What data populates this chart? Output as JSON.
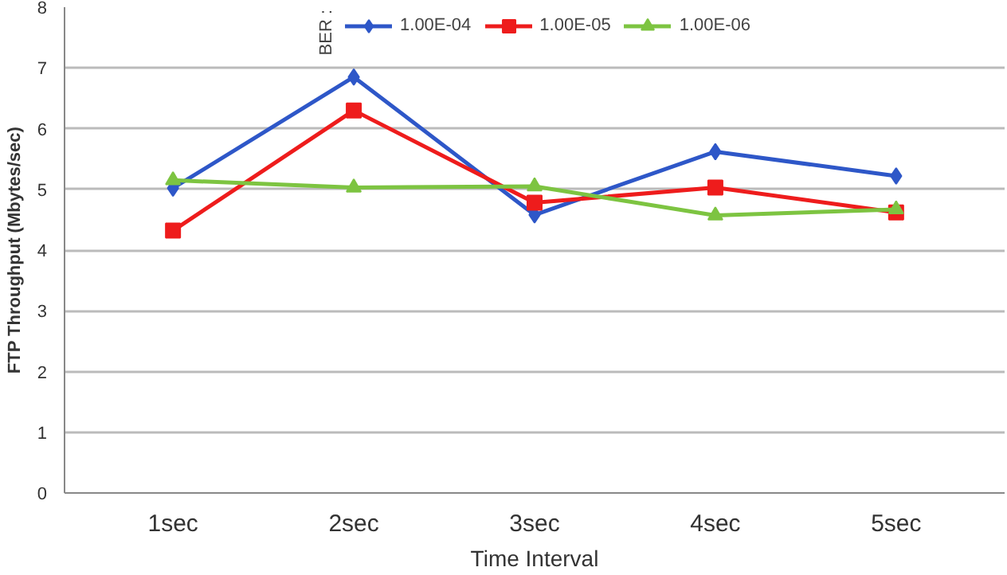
{
  "chart_data": {
    "type": "line",
    "xlabel": "Time Interval",
    "ylabel": "FTP Throughput (Mbytes/sec)",
    "legend_title": "BER :",
    "legend": "top",
    "grid": "y",
    "categories": [
      "1sec",
      "2sec",
      "3sec",
      "4sec",
      "5sec"
    ],
    "ylim": [
      0,
      8
    ],
    "yticks": [
      0,
      1,
      2,
      3,
      4,
      5,
      6,
      7,
      8
    ],
    "series": [
      {
        "name": "1.00E-04",
        "color": "#2e57c8",
        "marker": "diamond",
        "values": [
          5.02,
          6.85,
          4.58,
          5.62,
          5.22
        ]
      },
      {
        "name": "1.00E-05",
        "color": "#ee1c1c",
        "marker": "square",
        "values": [
          4.32,
          6.3,
          4.78,
          5.03,
          4.62
        ]
      },
      {
        "name": "1.00E-06",
        "color": "#7dc441",
        "marker": "triangle",
        "values": [
          5.15,
          5.03,
          5.05,
          4.57,
          4.67
        ]
      }
    ]
  }
}
